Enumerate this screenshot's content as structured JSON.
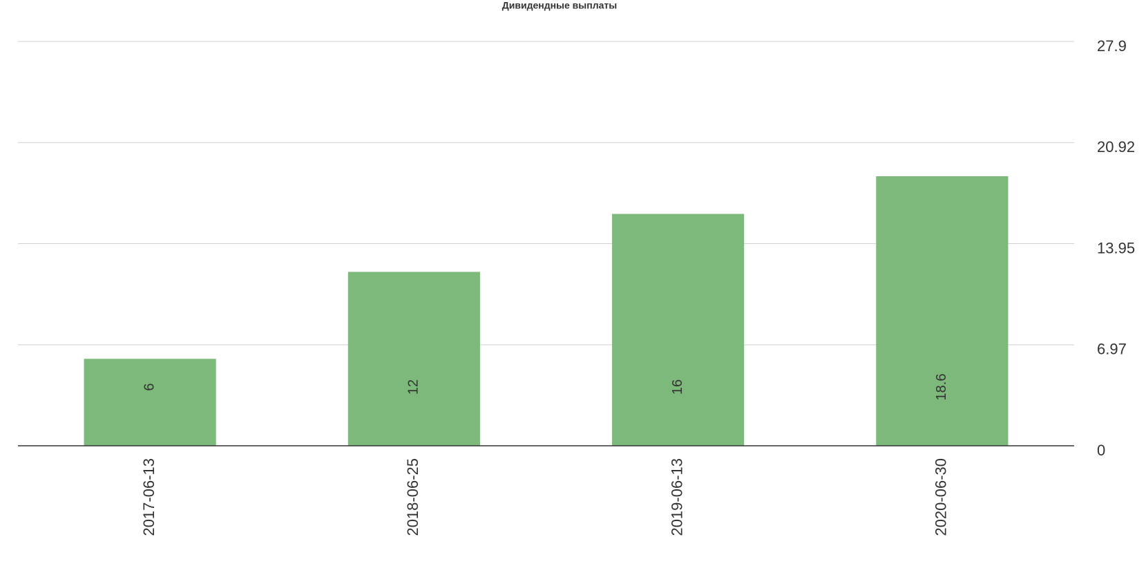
{
  "chart_data": {
    "type": "bar",
    "title": "Дивидендные выплаты",
    "categories": [
      "2017-06-13",
      "2018-06-25",
      "2019-06-13",
      "2020-06-30"
    ],
    "values": [
      6,
      12,
      16,
      18.6
    ],
    "color": "#7cb97a",
    "ylim": [
      0,
      27.9
    ],
    "yticks": [
      0,
      6.97,
      13.95,
      20.92,
      27.9
    ],
    "grid": true
  }
}
